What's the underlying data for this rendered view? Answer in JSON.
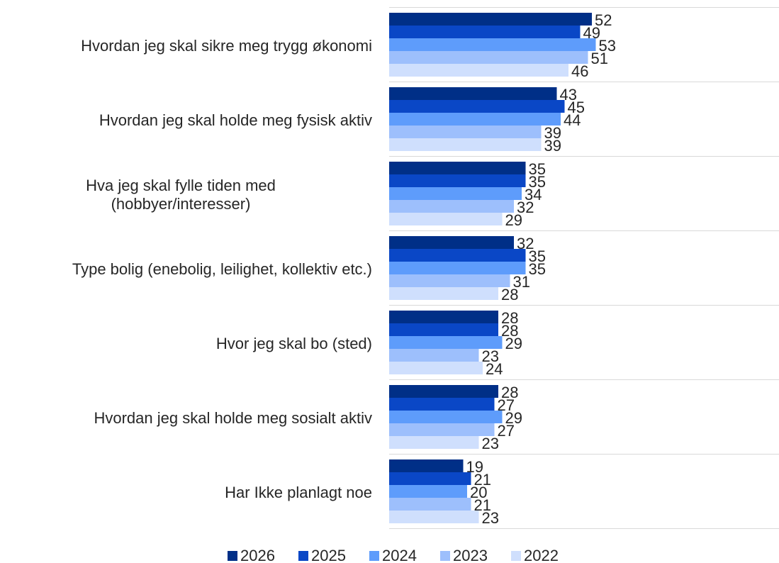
{
  "chart_data": {
    "type": "hbar",
    "categories": [
      "Hvordan jeg skal sikre meg trygg økonomi",
      "Hvordan jeg skal holde meg fysisk aktiv",
      "Hva jeg skal fylle tiden med\n(hobbyer/interesser)",
      "Type bolig (enebolig, leilighet, kollektiv etc.)",
      "Hvor jeg skal bo (sted)",
      "Hvordan jeg skal holde meg sosialt aktiv",
      "Har Ikke planlagt noe"
    ],
    "series": [
      {
        "name": "2026",
        "color": "#002f87",
        "values": [
          52,
          43,
          35,
          32,
          28,
          28,
          19
        ]
      },
      {
        "name": "2025",
        "color": "#0a47c6",
        "values": [
          49,
          45,
          35,
          35,
          28,
          27,
          21
        ]
      },
      {
        "name": "2024",
        "color": "#5e9cfb",
        "values": [
          53,
          44,
          34,
          35,
          29,
          29,
          20
        ]
      },
      {
        "name": "2023",
        "color": "#9dbffc",
        "values": [
          51,
          39,
          32,
          31,
          23,
          27,
          21
        ]
      },
      {
        "name": "2022",
        "color": "#cfdffd",
        "values": [
          46,
          39,
          29,
          28,
          24,
          23,
          23
        ]
      }
    ],
    "xlim": [
      0,
      100
    ],
    "legend": "bottom"
  }
}
